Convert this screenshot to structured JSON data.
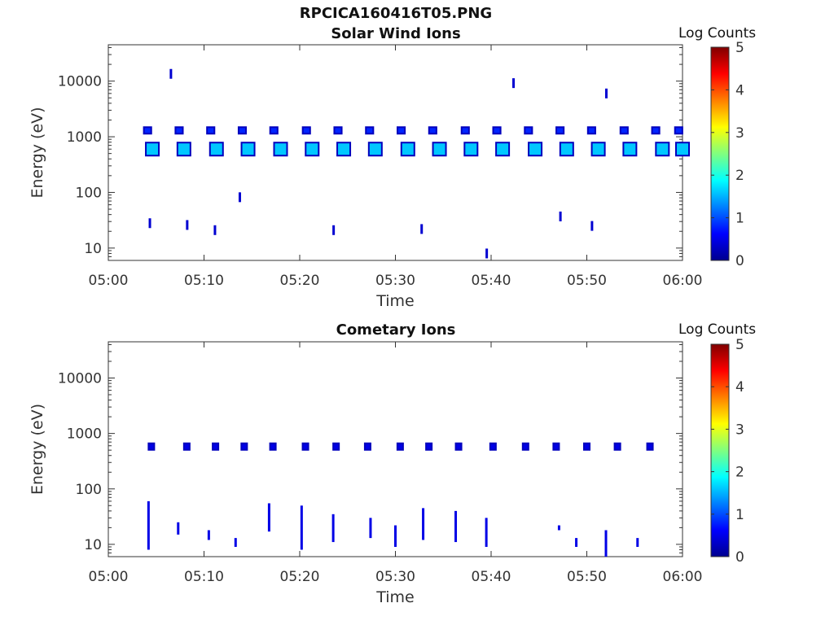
{
  "figure_title": "RPCICA160416T05.PNG",
  "chart_data": [
    {
      "type": "heatmap",
      "title": "Solar Wind Ions",
      "xlabel": "Time",
      "ylabel": "Energy (eV)",
      "xlim": [
        "05:00",
        "06:00"
      ],
      "ylim": [
        6,
        45000
      ],
      "yscale": "log",
      "xticks": [
        "05:00",
        "05:10",
        "05:20",
        "05:30",
        "05:40",
        "05:50",
        "06:00"
      ],
      "yticks": [
        "10",
        "100",
        "1000",
        "10000"
      ],
      "colorbar": {
        "label": "Log Counts",
        "range": [
          0,
          5
        ],
        "ticks": [
          "0",
          "1",
          "2",
          "3",
          "4",
          "5"
        ],
        "colormap": "jet"
      },
      "series": [
        {
          "energy_eV": 600,
          "minutes": [
            4.6,
            7.9,
            11.3,
            14.6,
            18.0,
            21.3,
            24.6,
            27.9,
            31.3,
            34.6,
            37.9,
            41.2,
            44.6,
            47.9,
            51.2,
            54.5,
            57.9,
            60.0
          ],
          "log_counts": 1.6
        },
        {
          "energy_eV": 1300,
          "minutes": [
            4.1,
            7.4,
            10.7,
            14.0,
            17.3,
            20.7,
            24.0,
            27.3,
            30.6,
            33.9,
            37.3,
            40.6,
            43.9,
            47.2,
            50.5,
            53.9,
            57.2,
            59.6
          ],
          "log_counts": 0.8
        }
      ],
      "sparse_points": [
        {
          "minutes": 4.3,
          "energy_eV": 28
        },
        {
          "minutes": 8.2,
          "energy_eV": 26
        },
        {
          "minutes": 11.1,
          "energy_eV": 21
        },
        {
          "minutes": 23.5,
          "energy_eV": 21
        },
        {
          "minutes": 32.7,
          "energy_eV": 22
        },
        {
          "minutes": 39.5,
          "energy_eV": 8
        },
        {
          "minutes": 6.5,
          "energy_eV": 13500
        },
        {
          "minutes": 42.3,
          "energy_eV": 9200
        },
        {
          "minutes": 52.0,
          "energy_eV": 6000
        },
        {
          "minutes": 13.7,
          "energy_eV": 82
        },
        {
          "minutes": 47.2,
          "energy_eV": 37
        },
        {
          "minutes": 50.5,
          "energy_eV": 25
        }
      ]
    },
    {
      "type": "heatmap",
      "title": "Cometary Ions",
      "xlabel": "Time",
      "ylabel": "Energy (eV)",
      "xlim": [
        "05:00",
        "06:00"
      ],
      "ylim": [
        6,
        45000
      ],
      "yscale": "log",
      "xticks": [
        "05:00",
        "05:10",
        "05:20",
        "05:30",
        "05:40",
        "05:50",
        "06:00"
      ],
      "yticks": [
        "10",
        "100",
        "1000",
        "10000"
      ],
      "colorbar": {
        "label": "Log Counts",
        "range": [
          0,
          5
        ],
        "ticks": [
          "0",
          "1",
          "2",
          "3",
          "4",
          "5"
        ],
        "colormap": "jet"
      },
      "series": [
        {
          "energy_eV": 580,
          "minutes": [
            4.5,
            8.2,
            11.2,
            14.2,
            17.2,
            20.6,
            23.8,
            27.1,
            30.5,
            33.5,
            36.6,
            40.2,
            43.6,
            46.8,
            50.0,
            53.2,
            56.6
          ],
          "log_counts": 0.5
        }
      ],
      "low_energy_columns": [
        {
          "minutes": 4.2,
          "energy_eV": [
            8,
            60
          ]
        },
        {
          "minutes": 7.3,
          "energy_eV": [
            15,
            25
          ]
        },
        {
          "minutes": 10.5,
          "energy_eV": [
            12,
            18
          ]
        },
        {
          "minutes": 13.3,
          "energy_eV": [
            9,
            13
          ]
        },
        {
          "minutes": 16.8,
          "energy_eV": [
            17,
            55
          ]
        },
        {
          "minutes": 20.2,
          "energy_eV": [
            8,
            50
          ]
        },
        {
          "minutes": 23.5,
          "energy_eV": [
            11,
            35
          ]
        },
        {
          "minutes": 27.4,
          "energy_eV": [
            13,
            30
          ]
        },
        {
          "minutes": 30.0,
          "energy_eV": [
            9,
            22
          ]
        },
        {
          "minutes": 32.9,
          "energy_eV": [
            12,
            45
          ]
        },
        {
          "minutes": 36.3,
          "energy_eV": [
            11,
            40
          ]
        },
        {
          "minutes": 39.5,
          "energy_eV": [
            9,
            30
          ]
        },
        {
          "minutes": 47.1,
          "energy_eV": [
            18,
            22
          ]
        },
        {
          "minutes": 48.9,
          "energy_eV": [
            9,
            13
          ]
        },
        {
          "minutes": 52.0,
          "energy_eV": [
            6,
            18
          ]
        },
        {
          "minutes": 55.3,
          "energy_eV": [
            9,
            13
          ]
        }
      ]
    }
  ]
}
